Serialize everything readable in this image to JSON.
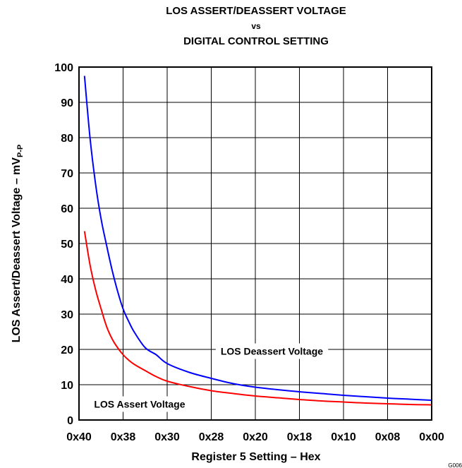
{
  "chart_data": {
    "type": "line",
    "title": [
      "LOS ASSERT/DEASSERT VOLTAGE",
      "vs",
      "DIGITAL CONTROL SETTING"
    ],
    "xlabel": "Register 5 Setting – Hex",
    "ylabel": "LOS Assert/Deassert Voltage – mV",
    "ylabel_subscript": "P-P",
    "x_domain": [
      64,
      0
    ],
    "x_ticks": [
      {
        "value": 64,
        "label": "0x40"
      },
      {
        "value": 56,
        "label": "0x38"
      },
      {
        "value": 48,
        "label": "0x30"
      },
      {
        "value": 40,
        "label": "0x28"
      },
      {
        "value": 32,
        "label": "0x20"
      },
      {
        "value": 24,
        "label": "0x18"
      },
      {
        "value": 16,
        "label": "0x10"
      },
      {
        "value": 8,
        "label": "0x08"
      },
      {
        "value": 0,
        "label": "0x00"
      }
    ],
    "ylim": [
      0,
      100
    ],
    "y_ticks": [
      0,
      10,
      20,
      30,
      40,
      50,
      60,
      70,
      80,
      90,
      100
    ],
    "grid": true,
    "series": [
      {
        "name": "LOS Deassert Voltage",
        "color": "#0000ff",
        "x": [
          63,
          62,
          61,
          60,
          59,
          58,
          57,
          56,
          55,
          54,
          52,
          50,
          48,
          44,
          40,
          36,
          32,
          28,
          24,
          20,
          16,
          12,
          8,
          4,
          0
        ],
        "y": [
          97.5,
          80,
          67,
          57,
          49.5,
          42.5,
          36.5,
          31.5,
          28,
          25,
          20.5,
          18.5,
          16,
          13.5,
          11.8,
          10.3,
          9.3,
          8.6,
          8,
          7.5,
          7,
          6.6,
          6.2,
          5.9,
          5.6
        ]
      },
      {
        "name": "LOS Assert Voltage",
        "color": "#ff0000",
        "x": [
          63,
          62,
          61,
          60,
          59,
          58,
          57,
          56,
          55,
          54,
          52,
          50,
          48,
          44,
          40,
          36,
          32,
          28,
          24,
          20,
          16,
          12,
          8,
          4,
          0
        ],
        "y": [
          53.5,
          44,
          37,
          31.5,
          26.5,
          23,
          20.5,
          18.5,
          17,
          15.8,
          14,
          12.3,
          11,
          9.5,
          8.3,
          7.5,
          6.8,
          6.3,
          5.8,
          5.4,
          5.1,
          4.8,
          4.6,
          4.4,
          4.3
        ]
      }
    ],
    "annotations": [
      {
        "text": "LOS Deassert Voltage",
        "x": 29,
        "y": 19.5
      },
      {
        "text": "LOS Assert Voltage",
        "x": 53,
        "y": 4.5
      }
    ],
    "figure_id": "G006"
  }
}
